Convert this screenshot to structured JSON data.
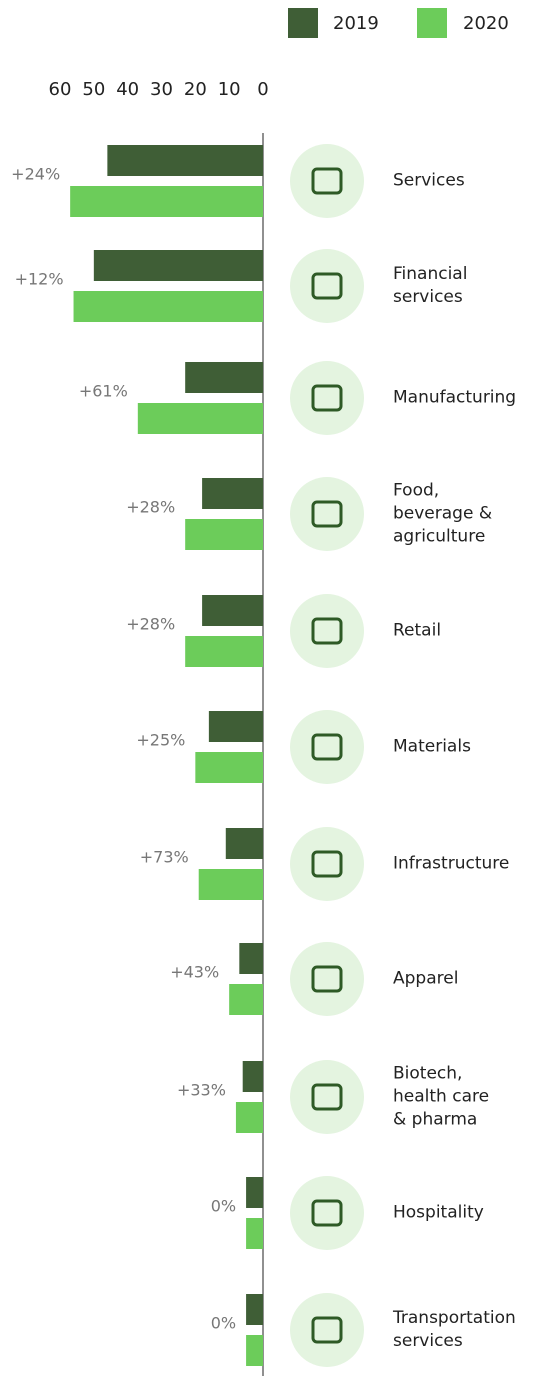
{
  "chart_data": {
    "type": "bar",
    "orientation": "horizontal-left",
    "categories": [
      "Services",
      "Financial\nservices",
      "Manufacturing",
      "Food,\nbeverage &\nagriculture",
      "Retail",
      "Materials",
      "Infrastructure",
      "Apparel",
      "Biotech,\nhealth care\n& pharma",
      "Hospitality",
      "Transportation\nservices"
    ],
    "series": [
      {
        "name": "2019",
        "color": "#3f5e36",
        "values": [
          46,
          50,
          23,
          18,
          18,
          16,
          11,
          7,
          6,
          5,
          5
        ]
      },
      {
        "name": "2020",
        "color": "#6ccc5a",
        "values": [
          57,
          56,
          37,
          23,
          23,
          20,
          19,
          10,
          8,
          5,
          5
        ]
      }
    ],
    "changes": [
      "+24%",
      "+12%",
      "+61%",
      "+28%",
      "+28%",
      "+25%",
      "+73%",
      "+43%",
      "+33%",
      "0%",
      "0%"
    ],
    "xlim": [
      0,
      60
    ],
    "xticks": [
      60,
      50,
      40,
      30,
      20,
      10,
      0
    ]
  }
}
